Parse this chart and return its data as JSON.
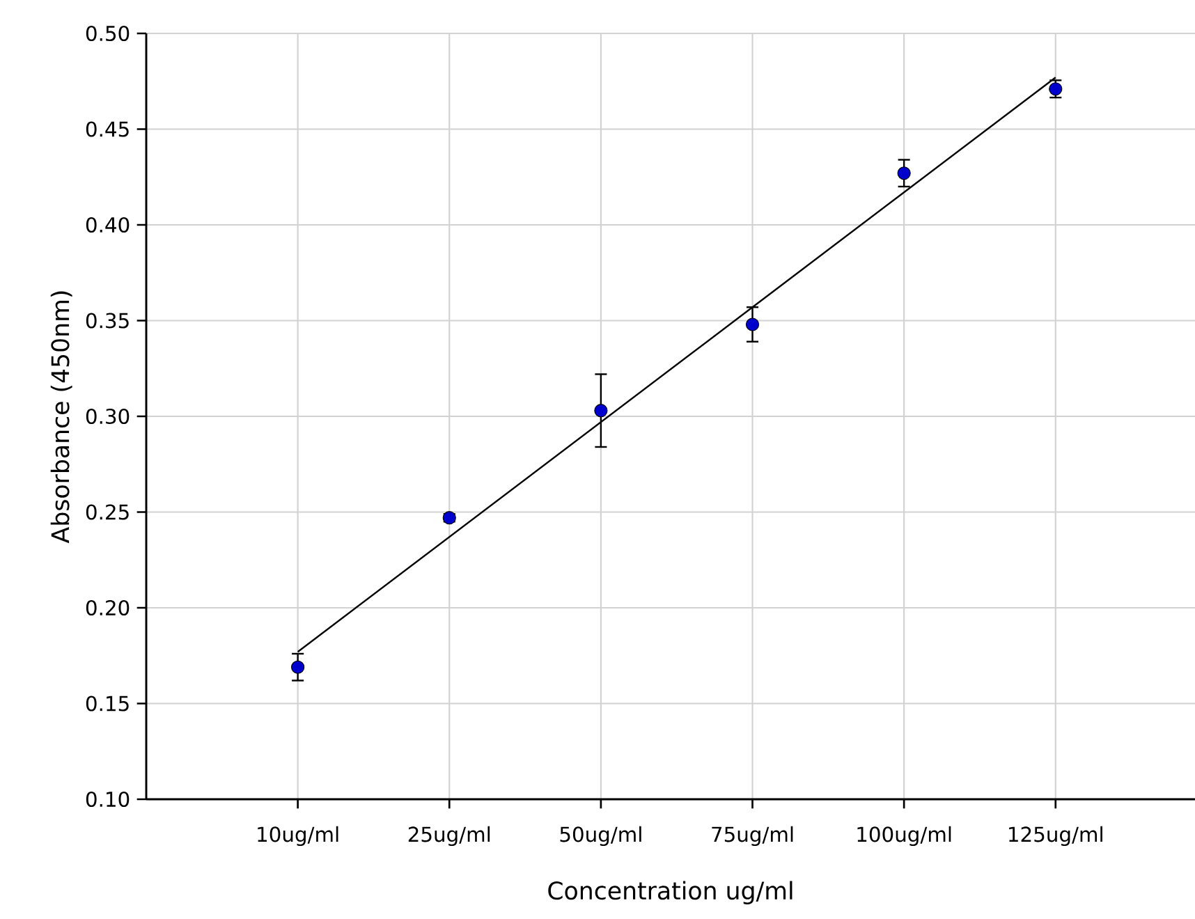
{
  "chart_data": {
    "type": "scatter",
    "xlabel": "Concentration ug/ml",
    "ylabel": "Absorbance (450nm)",
    "categories": [
      "10ug/ml",
      "25ug/ml",
      "50ug/ml",
      "75ug/ml",
      "100ug/ml",
      "125ug/ml"
    ],
    "series": [
      {
        "color": "#000000",
        "marker": "circle",
        "values": [
          0.169,
          0.247,
          0.303,
          0.348,
          0.427,
          0.471
        ],
        "errors": [
          0.007,
          0.002,
          0.019,
          0.009,
          0.007,
          0.0045
        ]
      },
      {
        "type": "line",
        "color": "#000000",
        "marker": "none",
        "values": [
          0.177,
          0.237,
          0.297,
          0.357,
          0.417,
          0.477
        ]
      }
    ],
    "ylim": [
      0.1,
      0.5
    ],
    "yticks": [
      {
        "value": 0.1,
        "label": "0.10"
      },
      {
        "value": 0.15,
        "label": "0.15"
      },
      {
        "value": 0.2,
        "label": "0.20"
      },
      {
        "value": 0.25,
        "label": "0.25"
      },
      {
        "value": 0.3,
        "label": "0.30"
      },
      {
        "value": 0.35,
        "label": "0.35"
      },
      {
        "value": 0.4,
        "label": "0.40"
      },
      {
        "value": 0.45,
        "label": "0.45"
      },
      {
        "value": 0.5,
        "label": "0.50"
      }
    ],
    "grid": true
  }
}
